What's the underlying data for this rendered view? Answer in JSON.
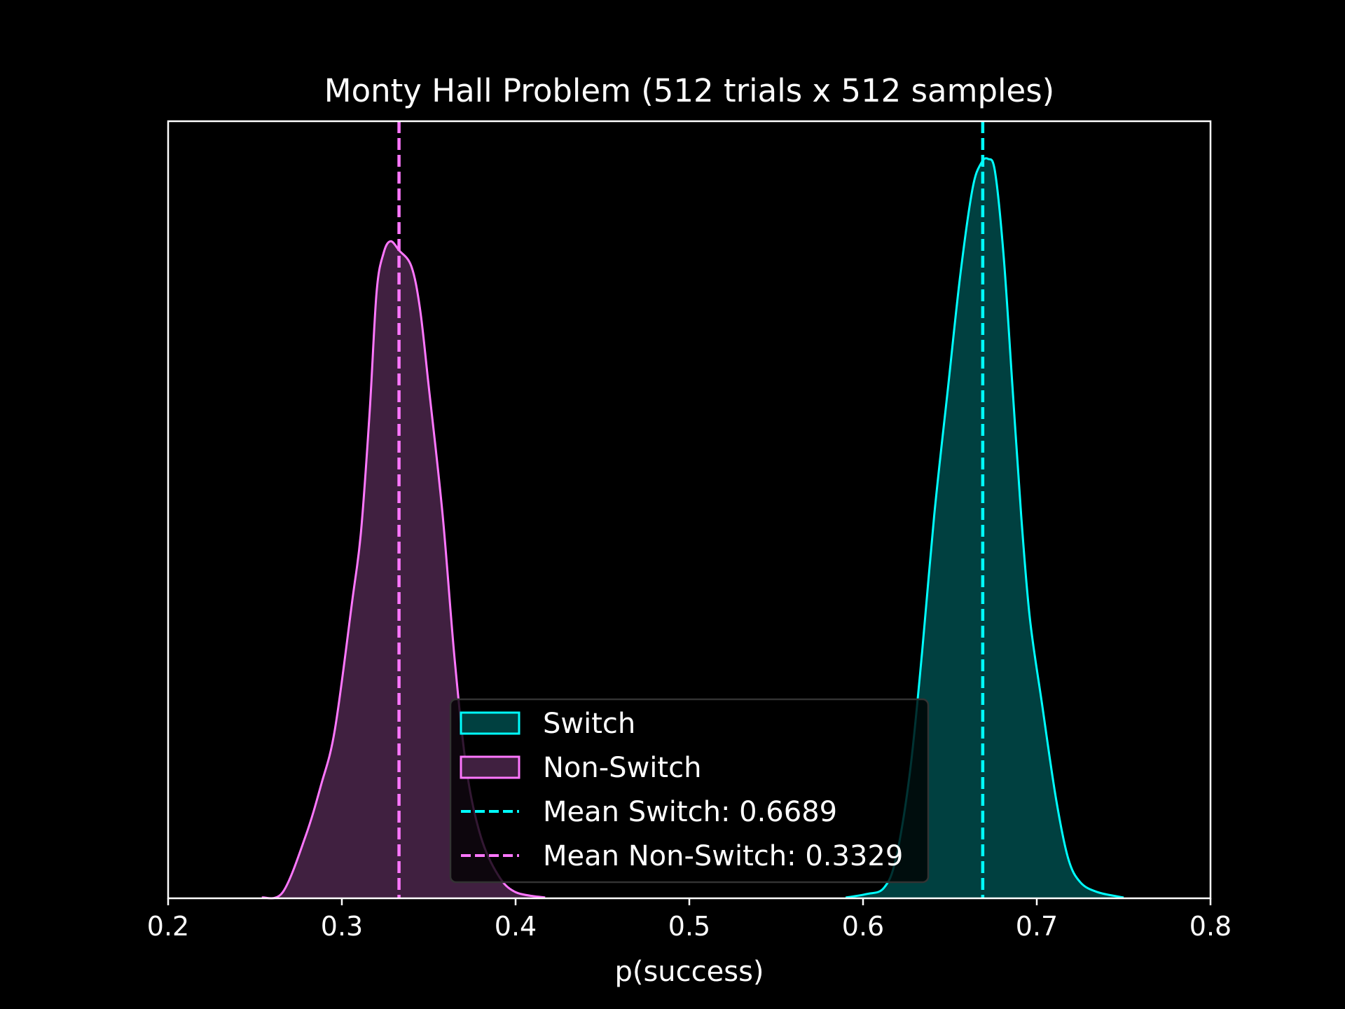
{
  "chart_data": {
    "type": "area",
    "title": "Monty Hall Problem (512 trials x 512 samples)",
    "xlabel": "p(success)",
    "ylabel": "",
    "xlim": [
      0.2,
      0.8
    ],
    "ylim": [
      0,
      20.2
    ],
    "xticks": [
      0.2,
      0.3,
      0.4,
      0.5,
      0.6,
      0.7,
      0.8
    ],
    "xtick_labels": [
      "0.2",
      "0.3",
      "0.4",
      "0.5",
      "0.6",
      "0.7",
      "0.8"
    ],
    "grid": false,
    "legend_position": "lower-center",
    "series": [
      {
        "name": "Switch",
        "kind": "kde",
        "color": "#00ffff",
        "fill": "#004040",
        "x": [
          0.59,
          0.602,
          0.612,
          0.619,
          0.627,
          0.634,
          0.641,
          0.649,
          0.656,
          0.663,
          0.668,
          0.672,
          0.676,
          0.681,
          0.686,
          0.691,
          0.696,
          0.703,
          0.711,
          0.718,
          0.725,
          0.735,
          0.75
        ],
        "y": [
          0.02,
          0.11,
          0.27,
          1.05,
          3.28,
          6.4,
          9.97,
          13.31,
          16.21,
          18.44,
          19.11,
          19.22,
          18.88,
          16.66,
          13.31,
          9.97,
          7.29,
          5.06,
          2.61,
          1.05,
          0.42,
          0.16,
          0.02
        ]
      },
      {
        "name": "Non-Switch",
        "kind": "kde",
        "color": "#ff77ff",
        "fill": "#402040",
        "x": [
          0.254,
          0.266,
          0.279,
          0.288,
          0.296,
          0.306,
          0.311,
          0.316,
          0.32,
          0.324,
          0.328,
          0.333,
          0.34,
          0.345,
          0.35,
          0.358,
          0.365,
          0.372,
          0.38,
          0.39,
          0.4,
          0.417
        ],
        "y": [
          0.02,
          0.16,
          1.6,
          2.94,
          4.39,
          7.74,
          9.52,
          12.64,
          15.76,
          16.77,
          17.08,
          16.84,
          16.43,
          15.32,
          13.31,
          9.97,
          6.18,
          3.28,
          1.6,
          0.6,
          0.16,
          0.02
        ]
      }
    ],
    "mean_lines": [
      {
        "name": "Mean Switch: 0.6689",
        "value": 0.6689,
        "color": "#00ffff"
      },
      {
        "name": "Mean Non-Switch: 0.3329",
        "value": 0.3329,
        "color": "#ff77ff"
      }
    ],
    "legend": [
      "Switch",
      "Non-Switch",
      "Mean Switch: 0.6689",
      "Mean Non-Switch: 0.3329"
    ]
  }
}
